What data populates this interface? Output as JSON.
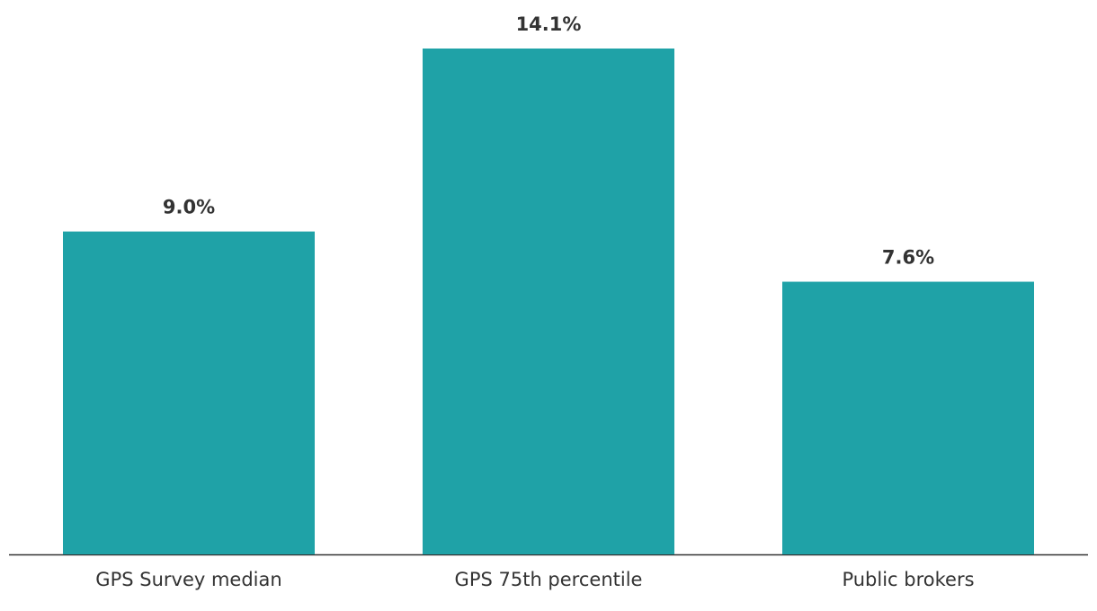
{
  "chart_data": {
    "type": "bar",
    "categories": [
      "GPS Survey median",
      "GPS 75th percentile",
      "Public brokers"
    ],
    "values": [
      9.0,
      14.1,
      7.6
    ],
    "value_labels": [
      "9.0%",
      "14.1%",
      "7.6%"
    ],
    "color": "#1fa2a7"
  }
}
